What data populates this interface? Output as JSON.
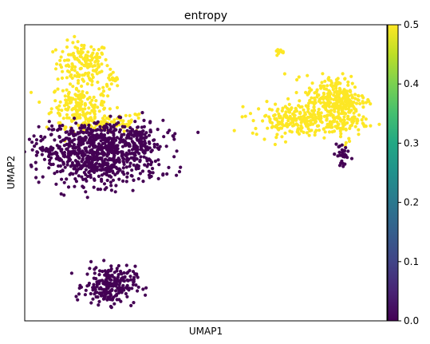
{
  "chart_data": {
    "type": "scatter",
    "title": "entropy",
    "xlabel": "UMAP1",
    "ylabel": "UMAP2",
    "xlim": [
      0,
      100
    ],
    "ylim": [
      0,
      100
    ],
    "grid": false,
    "colorbar": {
      "label": "",
      "range": [
        0.0,
        0.5
      ],
      "ticks": [
        "0.0",
        "0.1",
        "0.2",
        "0.3",
        "0.4",
        "0.5"
      ],
      "colors": [
        "#440154",
        "#482475",
        "#414487",
        "#355f8d",
        "#2a788e",
        "#21918c",
        "#22a884",
        "#44bf70",
        "#7ad151",
        "#bddf26",
        "#fde725"
      ]
    },
    "clusters": [
      {
        "x": 16,
        "y": 87,
        "sx": 3.6,
        "sy": 3.6,
        "n": 150,
        "value": 0.5
      },
      {
        "x": 15,
        "y": 73,
        "sx": 3.8,
        "sy": 3.6,
        "n": 170,
        "value": 0.5
      },
      {
        "x": 24,
        "y": 80,
        "sx": 1.5,
        "sy": 2.0,
        "n": 20,
        "value": 0.5
      },
      {
        "x": 22,
        "y": 67,
        "sx": 6.0,
        "sy": 1.8,
        "n": 90,
        "value": 0.5
      },
      {
        "x": 21,
        "y": 61,
        "sx": 8.5,
        "sy": 3.3,
        "n": 420,
        "value": 0.0
      },
      {
        "x": 21,
        "y": 53,
        "sx": 8.0,
        "sy": 3.6,
        "n": 420,
        "value": 0.0
      },
      {
        "x": 8,
        "y": 57,
        "sx": 1.8,
        "sy": 1.8,
        "n": 25,
        "value": 0.0
      },
      {
        "x": 32,
        "y": 60,
        "sx": 1.6,
        "sy": 4.0,
        "n": 40,
        "value": 0.0
      },
      {
        "x": 23.5,
        "y": 12,
        "sx": 3.5,
        "sy": 3.2,
        "n": 230,
        "value": 0.0
      },
      {
        "x": 86,
        "y": 75,
        "sx": 4.2,
        "sy": 4.0,
        "n": 260,
        "value": 0.5
      },
      {
        "x": 76,
        "y": 68,
        "sx": 6.5,
        "sy": 2.8,
        "n": 240,
        "value": 0.5
      },
      {
        "x": 88,
        "y": 68,
        "sx": 3.0,
        "sy": 3.5,
        "n": 70,
        "value": 0.5
      },
      {
        "x": 70.5,
        "y": 90.5,
        "sx": 0.6,
        "sy": 0.6,
        "n": 10,
        "value": 0.5
      },
      {
        "x": 87.5,
        "y": 56,
        "sx": 1.0,
        "sy": 2.8,
        "n": 30,
        "value": 0.0
      }
    ]
  }
}
